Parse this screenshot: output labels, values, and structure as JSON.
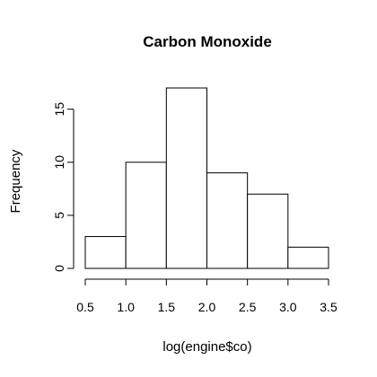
{
  "chart_data": {
    "type": "bar",
    "subtype": "histogram",
    "title": "Carbon Monoxide",
    "xlabel": "log(engine$co)",
    "ylabel": "Frequency",
    "bins": [
      {
        "start": 0.5,
        "end": 1.0,
        "count": 3
      },
      {
        "start": 1.0,
        "end": 1.5,
        "count": 10
      },
      {
        "start": 1.5,
        "end": 2.0,
        "count": 17
      },
      {
        "start": 2.0,
        "end": 2.5,
        "count": 9
      },
      {
        "start": 2.5,
        "end": 3.0,
        "count": 7
      },
      {
        "start": 3.0,
        "end": 3.5,
        "count": 2
      }
    ],
    "x_ticks": [
      "0.5",
      "1.0",
      "1.5",
      "2.0",
      "2.5",
      "3.0",
      "3.5"
    ],
    "y_ticks": [
      "0",
      "5",
      "10",
      "15"
    ],
    "xlim": [
      0.5,
      3.5
    ],
    "ylim": [
      0,
      17
    ],
    "grid": false,
    "legend": "none",
    "colors": {
      "bar_fill": "#ffffff",
      "bar_stroke": "#000000",
      "background": "#ffffff"
    }
  }
}
